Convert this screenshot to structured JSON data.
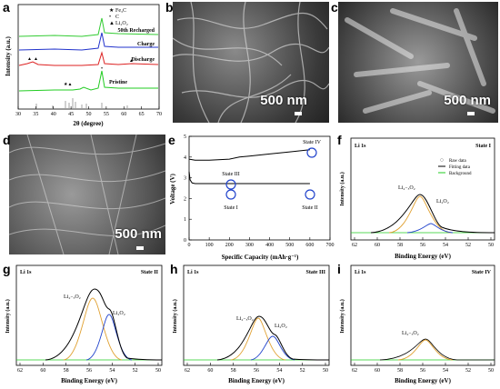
{
  "panels": {
    "a": {
      "label": "a",
      "ylabel": "Intensity (a.u.)",
      "xlabel": "2θ (degree)",
      "xticks": [
        "30",
        "35",
        "40",
        "45",
        "50",
        "55",
        "60",
        "65",
        "70"
      ],
      "legend": [
        "Fe₃C",
        "C",
        "Li₂O₂"
      ],
      "legend_markers": [
        "★",
        "•",
        "▲"
      ],
      "traces": [
        "50th Recharged",
        "Charge",
        "Discharge",
        "Pristine"
      ],
      "colors": {
        "recharged": "#33cc33",
        "charge": "#2233cc",
        "discharge": "#dd2222",
        "pristine": "#22cc22"
      }
    },
    "b": {
      "label": "b",
      "scale": "500 nm"
    },
    "c": {
      "label": "c",
      "scale": "500 nm"
    },
    "d": {
      "label": "d",
      "scale": "500 nm"
    },
    "e": {
      "label": "e",
      "ylabel": "Voltage (V)",
      "xlabel": "Specific Capacity (mAh·g⁻¹)",
      "xticks": [
        "0",
        "100",
        "200",
        "300",
        "400",
        "500",
        "600",
        "700"
      ],
      "yticks": [
        "0",
        "1",
        "2",
        "3",
        "4",
        "5"
      ],
      "states": [
        "State I",
        "State II",
        "State III",
        "State IV"
      ],
      "chart_data": {
        "type": "line",
        "xlim": [
          0,
          700
        ],
        "ylim": [
          0,
          5
        ],
        "discharge": {
          "x": [
            0,
            5,
            15,
            30,
            100,
            300,
            580,
            600
          ],
          "y": [
            3.3,
            2.9,
            2.75,
            2.72,
            2.72,
            2.72,
            2.72,
            2.72
          ]
        },
        "charge": {
          "x": [
            0,
            30,
            100,
            200,
            250,
            300,
            400,
            500,
            600
          ],
          "y": [
            3.9,
            3.85,
            3.85,
            3.9,
            4.0,
            4.05,
            4.15,
            4.25,
            4.35
          ]
        }
      }
    },
    "f": {
      "label": "f",
      "title": "Li 1s",
      "state": "State I",
      "ylabel": "Intensity (a.u.)",
      "xlabel": "Binding Energy (eV)",
      "legend": [
        "Raw data",
        "Fitting data",
        "Background"
      ],
      "peaks": [
        "Li₂₋ₓO₂",
        "Li₂O₂"
      ],
      "xticks": [
        "62",
        "60",
        "58",
        "56",
        "54",
        "52",
        "50"
      ]
    },
    "g": {
      "label": "g",
      "title": "Li 1s",
      "state": "State II",
      "ylabel": "Intensity (a.u.)",
      "xlabel": "Binding Energy (eV)",
      "peaks": [
        "Li₂₋ₓO₂",
        "Li₂O₂"
      ],
      "xticks": [
        "62",
        "60",
        "58",
        "56",
        "54",
        "52",
        "50"
      ]
    },
    "h": {
      "label": "h",
      "title": "Li 1s",
      "state": "State III",
      "ylabel": "Intensity (a.u.)",
      "xlabel": "Binding Energy (eV)",
      "peaks": [
        "Li₂₋ₓO₂",
        "Li₂O₂"
      ],
      "xticks": [
        "62",
        "60",
        "58",
        "56",
        "54",
        "52",
        "50"
      ]
    },
    "i": {
      "label": "i",
      "title": "Li 1s",
      "state": "State IV",
      "ylabel": "Intensity (a.u.)",
      "xlabel": "Binding Energy (eV)",
      "peaks": [
        "Li₂₋ₓO₂"
      ],
      "xticks": [
        "62",
        "60",
        "58",
        "56",
        "54",
        "52",
        "50"
      ]
    }
  }
}
